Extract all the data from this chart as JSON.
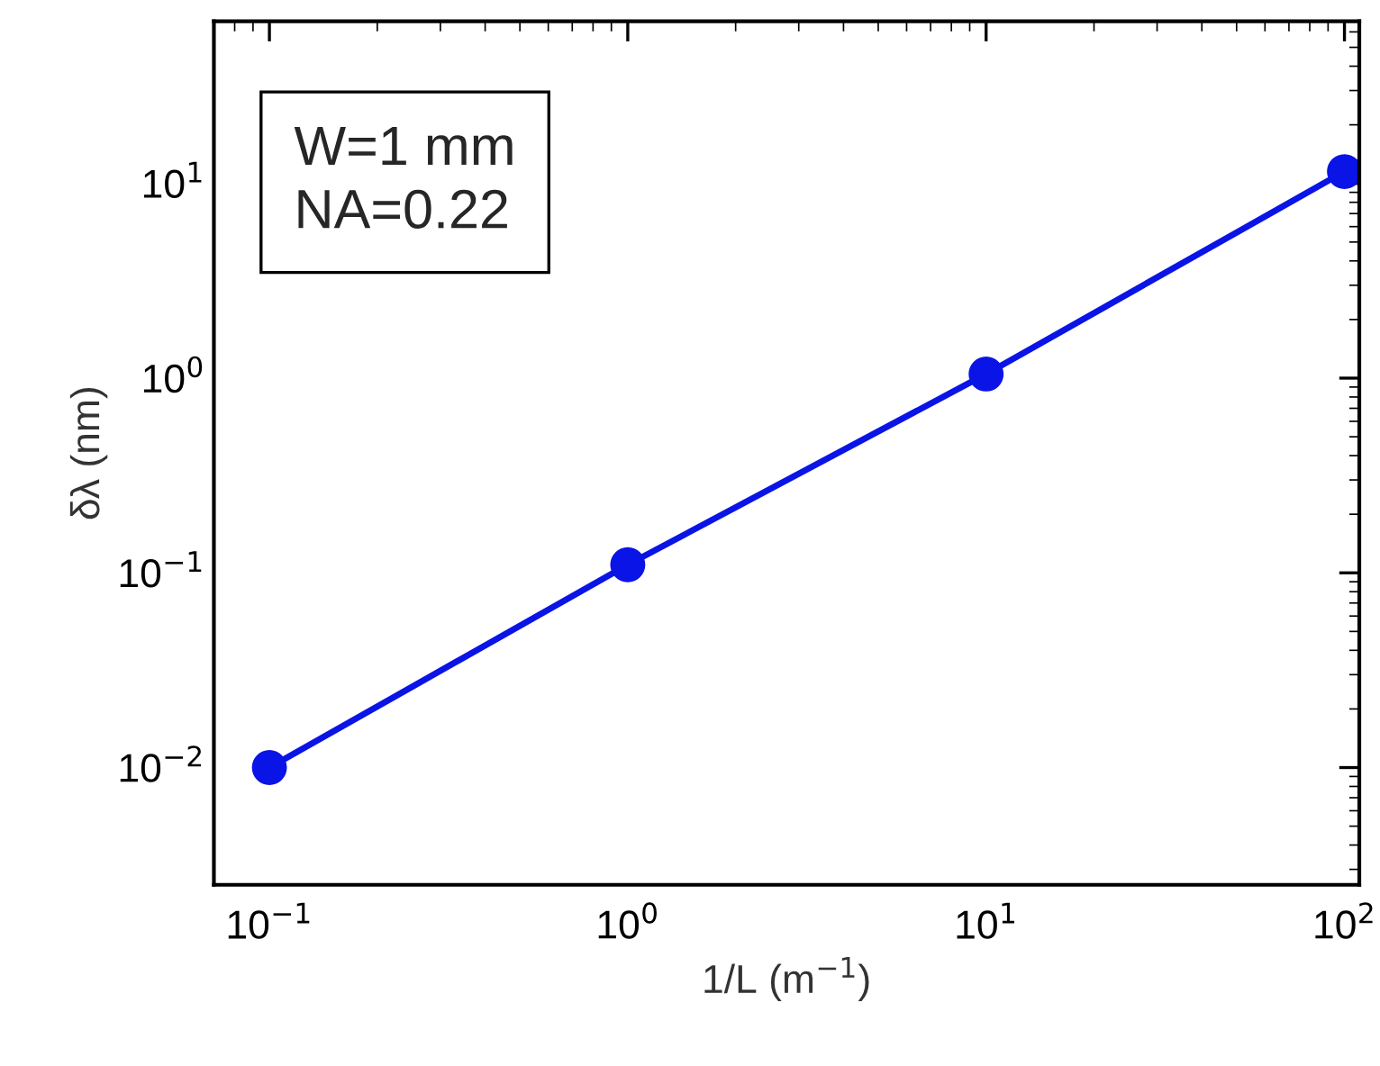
{
  "chart_data": {
    "type": "line",
    "xlabel": "1/L (m$^{−1}$)",
    "ylabel": "δλ (nm)",
    "x": [
      0.1,
      1,
      10,
      100
    ],
    "series": [
      {
        "color": "#0a14e6",
        "values": [
          0.01,
          0.11,
          1.05,
          11.5
        ]
      }
    ],
    "log": "xy",
    "marker": "circle",
    "line_style": "solid",
    "grid": false,
    "legend": false,
    "xlim": [
      0.07,
      110
    ],
    "ylim": [
      0.0025,
      68
    ],
    "xticks": [
      {
        "value": 0.1,
        "label": "10$^{−1}$"
      },
      {
        "value": 1,
        "label": "10$^{0}$"
      },
      {
        "value": 10,
        "label": "10$^{1}$"
      },
      {
        "value": 100,
        "label": "10$^{2}$"
      }
    ],
    "yticks": [
      {
        "value": 0.01,
        "label": "10$^{−2}$"
      },
      {
        "value": 0.1,
        "label": "10$^{−1}$"
      },
      {
        "value": 1,
        "label": "10$^{0}$"
      },
      {
        "value": 10,
        "label": "10$^{1}$"
      }
    ],
    "annotations": [
      "W=1 mm\nNA=0.22"
    ]
  }
}
